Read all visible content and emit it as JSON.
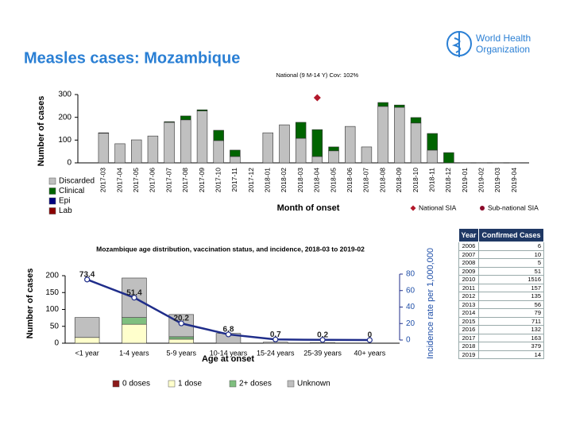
{
  "title": "Measles cases: Mozambique",
  "logo_text": [
    "World Health",
    "Organization"
  ],
  "chart_data": [
    {
      "type": "bar",
      "y_label": "Number of cases",
      "x_label": "Month of onset",
      "categories": [
        "2017-03",
        "2017-04",
        "2017-05",
        "2017-06",
        "2017-07",
        "2017-08",
        "2017-09",
        "2017-10",
        "2017-11",
        "2017-12",
        "2018-01",
        "2018-02",
        "2018-03",
        "2018-04",
        "2018-05",
        "2018-06",
        "2018-07",
        "2018-08",
        "2018-09",
        "2018-10",
        "2018-11",
        "2018-12",
        "2019-01",
        "2019-02",
        "2019-03",
        "2019-04"
      ],
      "series": [
        {
          "name": "Discarded",
          "color": "#c0c0c0",
          "values": [
            130,
            84,
            101,
            118,
            178,
            189,
            228,
            98,
            28,
            0,
            132,
            167,
            108,
            28,
            53,
            160,
            70,
            248,
            244,
            175,
            56,
            0,
            1,
            1,
            1,
            1
          ]
        },
        {
          "name": "Clinical",
          "color": "#006400",
          "values": [
            2,
            0,
            0,
            0,
            3,
            17,
            5,
            45,
            28,
            0,
            0,
            0,
            70,
            118,
            17,
            0,
            0,
            17,
            10,
            24,
            73,
            45,
            0,
            0,
            0,
            0
          ]
        },
        {
          "name": "Epi",
          "color": "#000080",
          "values": [
            0,
            0,
            0,
            0,
            0,
            0,
            0,
            0,
            0,
            0,
            0,
            0,
            0,
            0,
            0,
            0,
            0,
            0,
            0,
            0,
            0,
            0,
            0,
            0,
            0,
            0
          ]
        },
        {
          "name": "Lab",
          "color": "#8b0000",
          "values": [
            0,
            0,
            0,
            0,
            0,
            0,
            0,
            0,
            0,
            0,
            0,
            0,
            0,
            0,
            0,
            0,
            0,
            0,
            0,
            0,
            0,
            0,
            0,
            0,
            0,
            0
          ]
        }
      ],
      "ylim": [
        0,
        300
      ],
      "yticks": [
        0,
        100,
        200,
        300
      ],
      "grid": false,
      "legend": "bottom-left",
      "sia_legend": [
        {
          "name": "National SIA",
          "color": "#b2182b",
          "shape": "diamond"
        },
        {
          "name": "Sub-national SIA",
          "color": "#8b0a2a",
          "shape": "circle"
        }
      ],
      "sia_markers": [
        {
          "category": "2018-04",
          "kind": "National SIA",
          "label": "National (9 M-14 Y) Cov: 102%"
        }
      ]
    },
    {
      "type": "bar",
      "title": "Mozambique age distribution, vaccination status, and incidence, 2018-03 to 2019-02",
      "y_label": "Number of cases",
      "y2_label": "Incidence rate per 1,000,000",
      "x_label": "Age at onset",
      "categories": [
        "<1 year",
        "1-4 years",
        "5-9 years",
        "10-14 years",
        "15-24 years",
        "25-39 years",
        "40+ years"
      ],
      "series": [
        {
          "name": "0 doses",
          "color": "#8b1a1a",
          "values": [
            0,
            0,
            0,
            0,
            0,
            0,
            0
          ]
        },
        {
          "name": "1 dose",
          "color": "#ffffcc",
          "values": [
            17,
            56,
            12,
            0,
            0,
            0,
            0
          ]
        },
        {
          "name": "2+ doses",
          "color": "#7fbf7f",
          "values": [
            0,
            20,
            7,
            0,
            0,
            0,
            0
          ]
        },
        {
          "name": "Unknown",
          "color": "#bfbfbf",
          "values": [
            59,
            117,
            66,
            29,
            3,
            2,
            0
          ]
        },
        {
          "type": "line",
          "axis": "y2",
          "color": "#1f2d8a",
          "values": [
            73.4,
            51.4,
            20.2,
            6.8,
            0.7,
            0.2,
            0
          ]
        }
      ],
      "ylim": [
        0,
        200
      ],
      "yticks": [
        0,
        50,
        100,
        150,
        200
      ],
      "y2lim": [
        0,
        80
      ],
      "y2ticks": [
        0,
        20,
        40,
        60,
        80
      ],
      "grid": false,
      "legend": "bottom"
    }
  ],
  "table": {
    "header": [
      "Year",
      "Confirmed Cases"
    ],
    "rows": [
      [
        2006,
        6
      ],
      [
        2007,
        10
      ],
      [
        2008,
        5
      ],
      [
        2009,
        51
      ],
      [
        2010,
        1516
      ],
      [
        2011,
        157
      ],
      [
        2012,
        135
      ],
      [
        2013,
        56
      ],
      [
        2014,
        79
      ],
      [
        2015,
        711
      ],
      [
        2016,
        132
      ],
      [
        2017,
        163
      ],
      [
        2018,
        379
      ],
      [
        2019,
        14
      ]
    ]
  }
}
